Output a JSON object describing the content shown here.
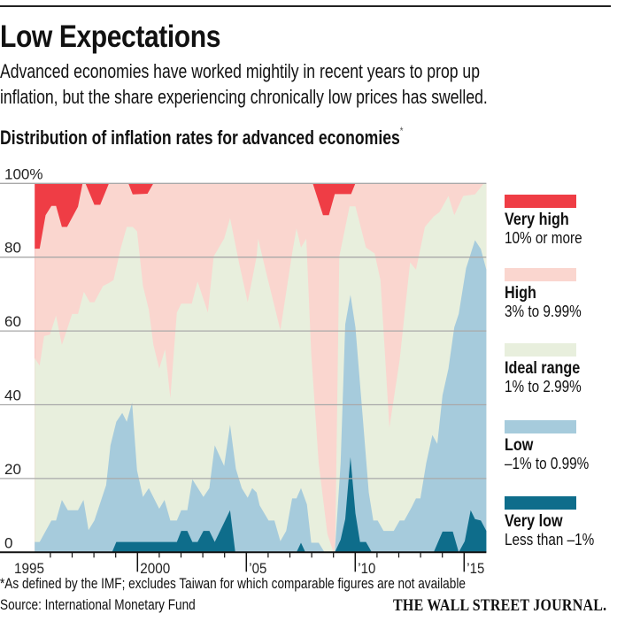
{
  "header": {
    "title": "Low Expectations",
    "subtitle_lines": [
      "Advanced economies have worked mightily in recent years to prop up",
      "inflation, but the share experiencing chronically low prices has swelled."
    ]
  },
  "footer": {
    "footnote": "*As defined by the IMF; excludes Taiwan for which comparable figures are not available",
    "source": "Source: International Monetary Fund",
    "logo_text": "THE WALL STREET JOURNAL."
  },
  "chart_data": {
    "type": "area",
    "stacked": true,
    "title": "Distribution of inflation rates for advanced economies",
    "title_marker": "*",
    "xlabel": "",
    "ylabel": "",
    "xlim": [
      1995,
      2016
    ],
    "ylim": [
      0,
      100
    ],
    "y_ticks": [
      0,
      20,
      40,
      60,
      80,
      100
    ],
    "y_tick_labels": [
      "0",
      "20",
      "40",
      "60",
      "80",
      "100%"
    ],
    "x_ticks": [
      1995,
      2000,
      2005,
      2010,
      2015
    ],
    "x_tick_labels": [
      "1995",
      "2000",
      "’05",
      "’10",
      "’15"
    ],
    "grid": true,
    "legend_placement": "right",
    "point_format": "[year, cumulative share % at top of band]",
    "series": [
      {
        "name": "Very high",
        "range": "10% or more",
        "color": "#ef3d45",
        "stack_top": [
          [
            1995.28,
            100
          ],
          [
            2016.02,
            100
          ]
        ]
      },
      {
        "name": "High",
        "range": "3% to 9.99%",
        "color": "#fad6cf",
        "stack_top": [
          [
            1995.28,
            82.3
          ],
          [
            1995.51,
            82.3
          ],
          [
            1995.78,
            91.4
          ],
          [
            1996.05,
            93.9
          ],
          [
            1996.26,
            93.9
          ],
          [
            1996.53,
            88.2
          ],
          [
            1996.77,
            88.2
          ],
          [
            1997.27,
            93.7
          ],
          [
            1997.48,
            100
          ],
          [
            1997.61,
            100
          ],
          [
            1998.02,
            94.2
          ],
          [
            1998.29,
            94.2
          ],
          [
            1998.69,
            100
          ],
          [
            1999.58,
            100
          ],
          [
            1999.78,
            97
          ],
          [
            2000.46,
            97.2
          ],
          [
            2000.73,
            100
          ],
          [
            2008.05,
            100
          ],
          [
            2008.52,
            91.4
          ],
          [
            2008.79,
            91.4
          ],
          [
            2009.06,
            97.1
          ],
          [
            2009.81,
            97.1
          ],
          [
            2010.01,
            100
          ],
          [
            2016.02,
            100
          ]
        ]
      },
      {
        "name": "Ideal range",
        "range": "1% to 2.99%",
        "color": "#e8efdd",
        "stack_top": [
          [
            1995.28,
            52.6
          ],
          [
            1995.51,
            50.6
          ],
          [
            1995.71,
            58.6
          ],
          [
            1995.98,
            59
          ],
          [
            1996.26,
            64.2
          ],
          [
            1996.53,
            56.2
          ],
          [
            1997.0,
            64.6
          ],
          [
            1997.27,
            64.6
          ],
          [
            1997.54,
            70.6
          ],
          [
            1997.81,
            67.8
          ],
          [
            1998.02,
            67.8
          ],
          [
            1998.42,
            72.2
          ],
          [
            1998.69,
            73
          ],
          [
            1998.9,
            73.8
          ],
          [
            1999.24,
            82.6
          ],
          [
            1999.51,
            88.2
          ],
          [
            1999.78,
            88.2
          ],
          [
            1999.98,
            87
          ],
          [
            2000.25,
            72.2
          ],
          [
            2000.52,
            65.8
          ],
          [
            2000.73,
            56.2
          ],
          [
            2001.0,
            49.8
          ],
          [
            2001.27,
            55
          ],
          [
            2001.51,
            41.8
          ],
          [
            2001.81,
            65
          ],
          [
            2002.01,
            67.4
          ],
          [
            2002.49,
            67.4
          ],
          [
            2002.76,
            73.4
          ],
          [
            2003.23,
            65
          ],
          [
            2003.5,
            80.2
          ],
          [
            2003.98,
            85
          ],
          [
            2004.25,
            90.6
          ],
          [
            2004.66,
            78.6
          ],
          [
            2005.06,
            67.8
          ],
          [
            2005.47,
            80.2
          ],
          [
            2005.54,
            85
          ],
          [
            2005.88,
            76.6
          ],
          [
            2006.56,
            60.2
          ],
          [
            2007.1,
            81
          ],
          [
            2007.3,
            87.8
          ],
          [
            2007.51,
            82.6
          ],
          [
            2007.75,
            85
          ],
          [
            2007.98,
            53.8
          ],
          [
            2008.32,
            24.2
          ],
          [
            2008.72,
            5
          ],
          [
            2009.0,
            0
          ],
          [
            2009.08,
            2
          ],
          [
            2009.27,
            80.2
          ],
          [
            2009.74,
            93.8
          ],
          [
            2010.01,
            93.8
          ],
          [
            2010.49,
            82.6
          ],
          [
            2010.89,
            81
          ],
          [
            2011.16,
            73.8
          ],
          [
            2011.57,
            33.8
          ],
          [
            2012.04,
            52.2
          ],
          [
            2012.52,
            78.6
          ],
          [
            2012.79,
            76.6
          ],
          [
            2013.2,
            88.2
          ],
          [
            2013.6,
            91
          ],
          [
            2013.87,
            92.2
          ],
          [
            2014.28,
            96.6
          ],
          [
            2014.55,
            91.4
          ],
          [
            2014.96,
            96.6
          ],
          [
            2015.5,
            97
          ],
          [
            2015.91,
            100
          ],
          [
            2016.02,
            100
          ]
        ]
      },
      {
        "name": "Low",
        "range": "–1% to 0.99%",
        "color": "#a6cbdc",
        "stack_top": [
          [
            1995.28,
            2.8
          ],
          [
            1995.51,
            2.8
          ],
          [
            1996.05,
            8.6
          ],
          [
            1996.26,
            8.6
          ],
          [
            1996.53,
            14.2
          ],
          [
            1996.8,
            11.4
          ],
          [
            1997.27,
            11.4
          ],
          [
            1997.52,
            14.2
          ],
          [
            1997.75,
            6
          ],
          [
            1998.02,
            8.6
          ],
          [
            1998.56,
            18.2
          ],
          [
            1998.76,
            29
          ],
          [
            1999.03,
            35.4
          ],
          [
            1999.3,
            37.8
          ],
          [
            1999.51,
            35.4
          ],
          [
            1999.75,
            40.6
          ],
          [
            1999.98,
            22.2
          ],
          [
            2000.25,
            15
          ],
          [
            2000.52,
            17.4
          ],
          [
            2001.0,
            11.8
          ],
          [
            2001.24,
            14.2
          ],
          [
            2001.51,
            8.6
          ],
          [
            2001.81,
            8.6
          ],
          [
            2002.01,
            11.4
          ],
          [
            2002.29,
            11.4
          ],
          [
            2002.52,
            19.8
          ],
          [
            2003.03,
            15
          ],
          [
            2003.3,
            17.4
          ],
          [
            2003.55,
            29
          ],
          [
            2003.98,
            23.4
          ],
          [
            2004.25,
            34.6
          ],
          [
            2004.52,
            22.6
          ],
          [
            2004.79,
            17.4
          ],
          [
            2005.06,
            14.8
          ],
          [
            2005.27,
            17.4
          ],
          [
            2005.47,
            16.2
          ],
          [
            2005.61,
            12.7
          ],
          [
            2006.02,
            8.6
          ],
          [
            2006.29,
            8.6
          ],
          [
            2006.56,
            3
          ],
          [
            2006.83,
            5.8
          ],
          [
            2007.1,
            14.6
          ],
          [
            2007.3,
            14.6
          ],
          [
            2007.51,
            17.4
          ],
          [
            2007.78,
            13
          ],
          [
            2007.98,
            2.6
          ],
          [
            2008.32,
            2.6
          ],
          [
            2008.59,
            0
          ],
          [
            2009.06,
            0
          ],
          [
            2009.33,
            24.2
          ],
          [
            2009.54,
            61.8
          ],
          [
            2009.78,
            69.8
          ],
          [
            2010.01,
            61
          ],
          [
            2010.35,
            36.2
          ],
          [
            2010.62,
            16.2
          ],
          [
            2010.83,
            8.6
          ],
          [
            2011.03,
            8.6
          ],
          [
            2011.3,
            5.8
          ],
          [
            2011.77,
            5.8
          ],
          [
            2012.04,
            8.6
          ],
          [
            2012.25,
            8.6
          ],
          [
            2012.59,
            12.2
          ],
          [
            2012.79,
            14.6
          ],
          [
            2012.99,
            14.6
          ],
          [
            2013.26,
            24.2
          ],
          [
            2013.54,
            31.8
          ],
          [
            2013.77,
            29.4
          ],
          [
            2014.01,
            42.6
          ],
          [
            2014.28,
            49.8
          ],
          [
            2014.55,
            61
          ],
          [
            2014.75,
            64.6
          ],
          [
            2015.09,
            77
          ],
          [
            2015.5,
            84.6
          ],
          [
            2015.77,
            82.2
          ],
          [
            2016.02,
            76.6
          ]
        ]
      },
      {
        "name": "Very low",
        "range": "Less than –1%",
        "color": "#0e6d8b",
        "stack_top": [
          [
            1995.28,
            0
          ],
          [
            1998.83,
            0
          ],
          [
            1999.03,
            2.8
          ],
          [
            2001.81,
            2.8
          ],
          [
            2002.01,
            5.8
          ],
          [
            2002.29,
            5.8
          ],
          [
            2002.52,
            2.8
          ],
          [
            2002.76,
            2.8
          ],
          [
            2003.03,
            5.8
          ],
          [
            2003.3,
            5.8
          ],
          [
            2003.55,
            2.8
          ],
          [
            2004.25,
            11.4
          ],
          [
            2004.49,
            0
          ],
          [
            2007.3,
            0
          ],
          [
            2007.51,
            2.6
          ],
          [
            2007.71,
            0
          ],
          [
            2009.06,
            0
          ],
          [
            2009.33,
            3.4
          ],
          [
            2009.54,
            9
          ],
          [
            2009.78,
            25.8
          ],
          [
            2010.01,
            10.6
          ],
          [
            2010.22,
            2.8
          ],
          [
            2010.49,
            2.8
          ],
          [
            2010.76,
            0
          ],
          [
            2013.6,
            0
          ],
          [
            2014.01,
            5.6
          ],
          [
            2014.48,
            5.6
          ],
          [
            2014.75,
            0
          ],
          [
            2015.03,
            3
          ],
          [
            2015.3,
            11.4
          ],
          [
            2015.5,
            9
          ],
          [
            2015.77,
            8.6
          ],
          [
            2016.02,
            5.8
          ]
        ]
      }
    ]
  }
}
